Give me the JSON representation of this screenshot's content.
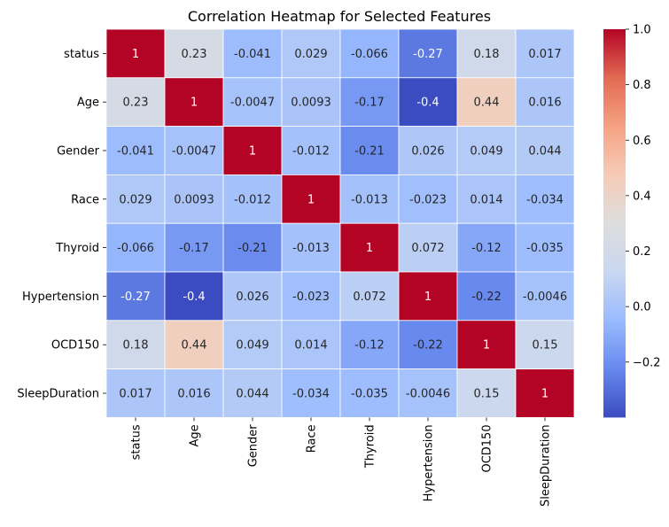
{
  "chart_data": {
    "type": "heatmap",
    "title": "Correlation Heatmap for Selected Features",
    "xlabel": "",
    "ylabel": "",
    "rows": [
      "status",
      "Age",
      "Gender",
      "Race",
      "Thyroid",
      "Hypertension",
      "OCD150",
      "SleepDuration"
    ],
    "cols": [
      "status",
      "Age",
      "Gender",
      "Race",
      "Thyroid",
      "Hypertension",
      "OCD150",
      "SleepDuration"
    ],
    "values": [
      [
        1,
        0.23,
        -0.041,
        0.029,
        -0.066,
        -0.27,
        0.18,
        0.017
      ],
      [
        0.23,
        1,
        -0.0047,
        0.0093,
        -0.17,
        -0.4,
        0.44,
        0.016
      ],
      [
        -0.041,
        -0.0047,
        1,
        -0.012,
        -0.21,
        0.026,
        0.049,
        0.044
      ],
      [
        0.029,
        0.0093,
        -0.012,
        1,
        -0.013,
        -0.023,
        0.014,
        -0.034
      ],
      [
        -0.066,
        -0.17,
        -0.21,
        -0.013,
        1,
        0.072,
        -0.12,
        -0.035
      ],
      [
        -0.27,
        -0.4,
        0.026,
        -0.023,
        0.072,
        1,
        -0.22,
        -0.0046
      ],
      [
        0.18,
        0.44,
        0.049,
        0.014,
        -0.12,
        -0.22,
        1,
        0.15
      ],
      [
        0.017,
        0.016,
        0.044,
        -0.034,
        -0.035,
        -0.0046,
        0.15,
        1
      ]
    ],
    "value_labels": [
      [
        "1",
        "0.23",
        "-0.041",
        "0.029",
        "-0.066",
        "-0.27",
        "0.18",
        "0.017"
      ],
      [
        "0.23",
        "1",
        "-0.0047",
        "0.0093",
        "-0.17",
        "-0.4",
        "0.44",
        "0.016"
      ],
      [
        "-0.041",
        "-0.0047",
        "1",
        "-0.012",
        "-0.21",
        "0.026",
        "0.049",
        "0.044"
      ],
      [
        "0.029",
        "0.0093",
        "-0.012",
        "1",
        "-0.013",
        "-0.023",
        "0.014",
        "-0.034"
      ],
      [
        "-0.066",
        "-0.17",
        "-0.21",
        "-0.013",
        "1",
        "0.072",
        "-0.12",
        "-0.035"
      ],
      [
        "-0.27",
        "-0.4",
        "0.026",
        "-0.023",
        "0.072",
        "1",
        "-0.22",
        "-0.0046"
      ],
      [
        "0.18",
        "0.44",
        "0.049",
        "0.014",
        "-0.12",
        "-0.22",
        "1",
        "0.15"
      ],
      [
        "0.017",
        "0.016",
        "0.044",
        "-0.034",
        "-0.035",
        "-0.0046",
        "0.15",
        "1"
      ]
    ],
    "colormap": "coolwarm",
    "vmin": -0.4,
    "vmax": 1.0,
    "colorbar": {
      "ticks": [
        -0.2,
        0.0,
        0.2,
        0.4,
        0.6,
        0.8,
        1.0
      ],
      "tick_labels": [
        "−0.2",
        "0.0",
        "0.2",
        "0.4",
        "0.6",
        "0.8",
        "1.0"
      ],
      "placement": "right"
    },
    "grid": false,
    "cell_borders": true,
    "annotated": true
  },
  "colors": {
    "cmap_stops": [
      "#3b4cc0",
      "#6788ee",
      "#9abbff",
      "#c9d7f0",
      "#dddddd",
      "#f6cbb7",
      "#f5a282",
      "#e36a53",
      "#b40426"
    ],
    "cell_border": "#ffffff",
    "text_dark": "#262626",
    "text_light": "#ffffff"
  }
}
